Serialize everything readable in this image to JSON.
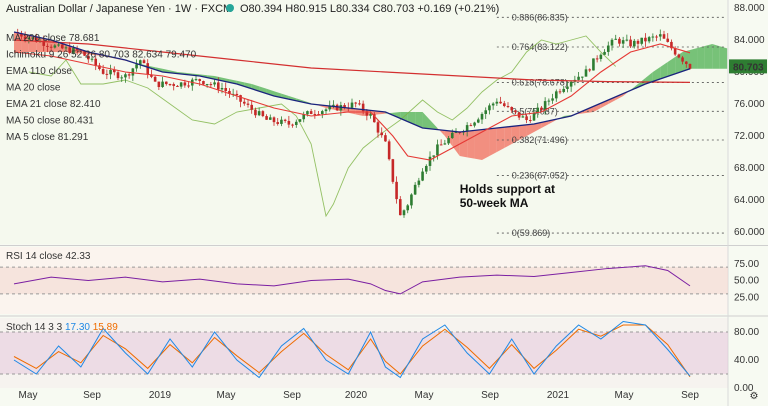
{
  "header": {
    "symbol_title": "Australian Dollar / Japanese Yen · 1W · FXCM",
    "ohlc": "O80.394 H80.915 L80.334 C80.703 +0.169 (+0.21%)"
  },
  "legend": {
    "ma200": "MA 200 close",
    "ma200_value": "78.681",
    "ichimoku": "Ichimoku 9 26 52 26",
    "ichimoku_v1": "80.703",
    "ichimoku_v2": "82.634",
    "ichimoku_v3": "79.470",
    "ema110": "EMA 110 close",
    "ma20": "MA 20 close",
    "ema21": "EMA 21 close",
    "ema21_value": "82.410",
    "ma50": "MA 50 close",
    "ma50_value": "80.431",
    "ma5": "MA 5 close",
    "ma5_value": "81.291",
    "rsi": "RSI 14 close",
    "rsi_value": "42.33",
    "stoch": "Stoch 14 3 3",
    "stoch_k": "17.30",
    "stoch_d": "15.89"
  },
  "annotation": {
    "line1": "Holds support at",
    "line2": "50-week MA"
  },
  "price_label": "80.703",
  "colors": {
    "bull": "#2e7d32",
    "bear": "#c62828",
    "ema21": "#e53935",
    "ma50": "#1a237e",
    "ma200": "#d32f2f",
    "cloud_bull": "#4caf50",
    "cloud_bear": "#f06b5b",
    "chikou": "#7cb342",
    "rsi_line": "#7b1fa2",
    "stoch_k": "#1e88e5",
    "stoch_d": "#ef6c00",
    "price_tag": "#2e7d32"
  },
  "chart_data": {
    "type": "candlestick",
    "timeframe": "1W",
    "x_ticks": [
      "May",
      "Sep",
      "2019",
      "May",
      "Sep",
      "2020",
      "May",
      "Sep",
      "2021",
      "May",
      "Sep"
    ],
    "y_ticks": [
      "88.000",
      "84.000",
      "80.000",
      "76.000",
      "72.000",
      "68.000",
      "64.000",
      "60.000"
    ],
    "ylim": [
      58.5,
      89
    ],
    "fib_levels": [
      {
        "ratio": 0.886,
        "price": 86.835,
        "label": "0.886(86.835)"
      },
      {
        "ratio": 0.764,
        "price": 83.122,
        "label": "0.764(83.122)"
      },
      {
        "ratio": 0.618,
        "price": 78.678,
        "label": "0.618(78.678)"
      },
      {
        "ratio": 0.5,
        "price": 75.087,
        "label": "0.5(75.087)"
      },
      {
        "ratio": 0.382,
        "price": 71.496,
        "label": "0.382(71.496)"
      },
      {
        "ratio": 0.236,
        "price": 67.052,
        "label": "0.236(67.052)"
      },
      {
        "ratio": 0,
        "price": 59.869,
        "label": "0(59.869)"
      }
    ],
    "close_path": [
      [
        0,
        85.0
      ],
      [
        6,
        84.0
      ],
      [
        12,
        83.0
      ],
      [
        18,
        82.5
      ],
      [
        24,
        80.0
      ],
      [
        30,
        79.5
      ],
      [
        34,
        81.5
      ],
      [
        38,
        78.5
      ],
      [
        44,
        78.5
      ],
      [
        50,
        79.0
      ],
      [
        56,
        78.0
      ],
      [
        62,
        76.0
      ],
      [
        68,
        74.0
      ],
      [
        74,
        73.5
      ],
      [
        80,
        75.0
      ],
      [
        86,
        75.5
      ],
      [
        92,
        76.0
      ],
      [
        96,
        74.5
      ],
      [
        100,
        71.0
      ],
      [
        102,
        66.5
      ],
      [
        104,
        62.0
      ],
      [
        106,
        63.5
      ],
      [
        110,
        68.0
      ],
      [
        114,
        70.5
      ],
      [
        118,
        72.0
      ],
      [
        124,
        74.0
      ],
      [
        130,
        76.5
      ],
      [
        134,
        75.0
      ],
      [
        138,
        74.0
      ],
      [
        142,
        75.5
      ],
      [
        146,
        77.5
      ],
      [
        150,
        79.0
      ],
      [
        154,
        80.0
      ],
      [
        158,
        82.5
      ],
      [
        162,
        84.0
      ],
      [
        166,
        83.5
      ],
      [
        170,
        84.0
      ],
      [
        174,
        84.5
      ],
      [
        178,
        82.5
      ],
      [
        182,
        80.7
      ]
    ],
    "ema21": [
      [
        0,
        82.5
      ],
      [
        10,
        82.0
      ],
      [
        20,
        81.0
      ],
      [
        30,
        80.0
      ],
      [
        40,
        79.5
      ],
      [
        50,
        78.5
      ],
      [
        60,
        77.0
      ],
      [
        70,
        75.5
      ],
      [
        80,
        74.5
      ],
      [
        90,
        75.0
      ],
      [
        96,
        75.0
      ],
      [
        102,
        72.0
      ],
      [
        106,
        69.5
      ],
      [
        112,
        69.0
      ],
      [
        118,
        70.5
      ],
      [
        126,
        72.5
      ],
      [
        134,
        74.5
      ],
      [
        142,
        75.0
      ],
      [
        150,
        77.0
      ],
      [
        158,
        80.0
      ],
      [
        166,
        82.5
      ],
      [
        174,
        83.5
      ],
      [
        182,
        82.4
      ]
    ],
    "ma50": [
      [
        0,
        85.0
      ],
      [
        10,
        84.0
      ],
      [
        20,
        82.5
      ],
      [
        30,
        81.5
      ],
      [
        40,
        80.0
      ],
      [
        50,
        79.5
      ],
      [
        60,
        78.5
      ],
      [
        70,
        77.0
      ],
      [
        80,
        76.0
      ],
      [
        90,
        75.5
      ],
      [
        100,
        75.0
      ],
      [
        110,
        73.0
      ],
      [
        120,
        72.5
      ],
      [
        130,
        73.0
      ],
      [
        140,
        73.5
      ],
      [
        150,
        74.5
      ],
      [
        160,
        76.5
      ],
      [
        170,
        78.5
      ],
      [
        182,
        80.4
      ]
    ],
    "ma200": [
      [
        0,
        84.0
      ],
      [
        20,
        83.5
      ],
      [
        40,
        82.5
      ],
      [
        60,
        81.5
      ],
      [
        80,
        80.5
      ],
      [
        100,
        80.0
      ],
      [
        120,
        79.5
      ],
      [
        140,
        79.0
      ],
      [
        160,
        78.8
      ],
      [
        182,
        78.7
      ]
    ],
    "rsi": {
      "ylim": [
        0,
        100
      ],
      "ticks": [
        "75.00",
        "50.00",
        "25.00"
      ],
      "upper": 70,
      "lower": 30,
      "values": [
        [
          0,
          45
        ],
        [
          10,
          55
        ],
        [
          20,
          50
        ],
        [
          30,
          55
        ],
        [
          40,
          48
        ],
        [
          50,
          52
        ],
        [
          60,
          45
        ],
        [
          70,
          42
        ],
        [
          80,
          50
        ],
        [
          90,
          52
        ],
        [
          96,
          45
        ],
        [
          100,
          35
        ],
        [
          104,
          30
        ],
        [
          110,
          48
        ],
        [
          120,
          55
        ],
        [
          130,
          58
        ],
        [
          140,
          56
        ],
        [
          150,
          62
        ],
        [
          160,
          68
        ],
        [
          170,
          72
        ],
        [
          176,
          65
        ],
        [
          182,
          42
        ]
      ]
    },
    "stoch": {
      "ylim": [
        0,
        100
      ],
      "ticks": [
        "80.00",
        "40.00",
        "0.00"
      ],
      "upper": 80,
      "lower": 20,
      "k": [
        [
          0,
          40
        ],
        [
          6,
          20
        ],
        [
          12,
          60
        ],
        [
          18,
          30
        ],
        [
          24,
          85
        ],
        [
          30,
          50
        ],
        [
          36,
          20
        ],
        [
          42,
          70
        ],
        [
          48,
          30
        ],
        [
          54,
          80
        ],
        [
          60,
          40
        ],
        [
          66,
          15
        ],
        [
          72,
          60
        ],
        [
          78,
          85
        ],
        [
          84,
          40
        ],
        [
          90,
          20
        ],
        [
          96,
          80
        ],
        [
          100,
          30
        ],
        [
          104,
          15
        ],
        [
          110,
          70
        ],
        [
          116,
          90
        ],
        [
          122,
          50
        ],
        [
          128,
          20
        ],
        [
          134,
          70
        ],
        [
          140,
          20
        ],
        [
          146,
          60
        ],
        [
          152,
          90
        ],
        [
          158,
          70
        ],
        [
          164,
          95
        ],
        [
          170,
          90
        ],
        [
          176,
          55
        ],
        [
          182,
          17
        ]
      ],
      "d": [
        [
          0,
          45
        ],
        [
          6,
          28
        ],
        [
          12,
          52
        ],
        [
          18,
          36
        ],
        [
          24,
          75
        ],
        [
          30,
          56
        ],
        [
          36,
          28
        ],
        [
          42,
          62
        ],
        [
          48,
          36
        ],
        [
          54,
          72
        ],
        [
          60,
          46
        ],
        [
          66,
          22
        ],
        [
          72,
          52
        ],
        [
          78,
          78
        ],
        [
          84,
          48
        ],
        [
          90,
          26
        ],
        [
          96,
          70
        ],
        [
          100,
          38
        ],
        [
          104,
          20
        ],
        [
          110,
          60
        ],
        [
          116,
          84
        ],
        [
          122,
          58
        ],
        [
          128,
          28
        ],
        [
          134,
          62
        ],
        [
          140,
          28
        ],
        [
          146,
          54
        ],
        [
          152,
          84
        ],
        [
          158,
          74
        ],
        [
          164,
          90
        ],
        [
          170,
          90
        ],
        [
          176,
          62
        ],
        [
          182,
          16
        ]
      ]
    }
  }
}
